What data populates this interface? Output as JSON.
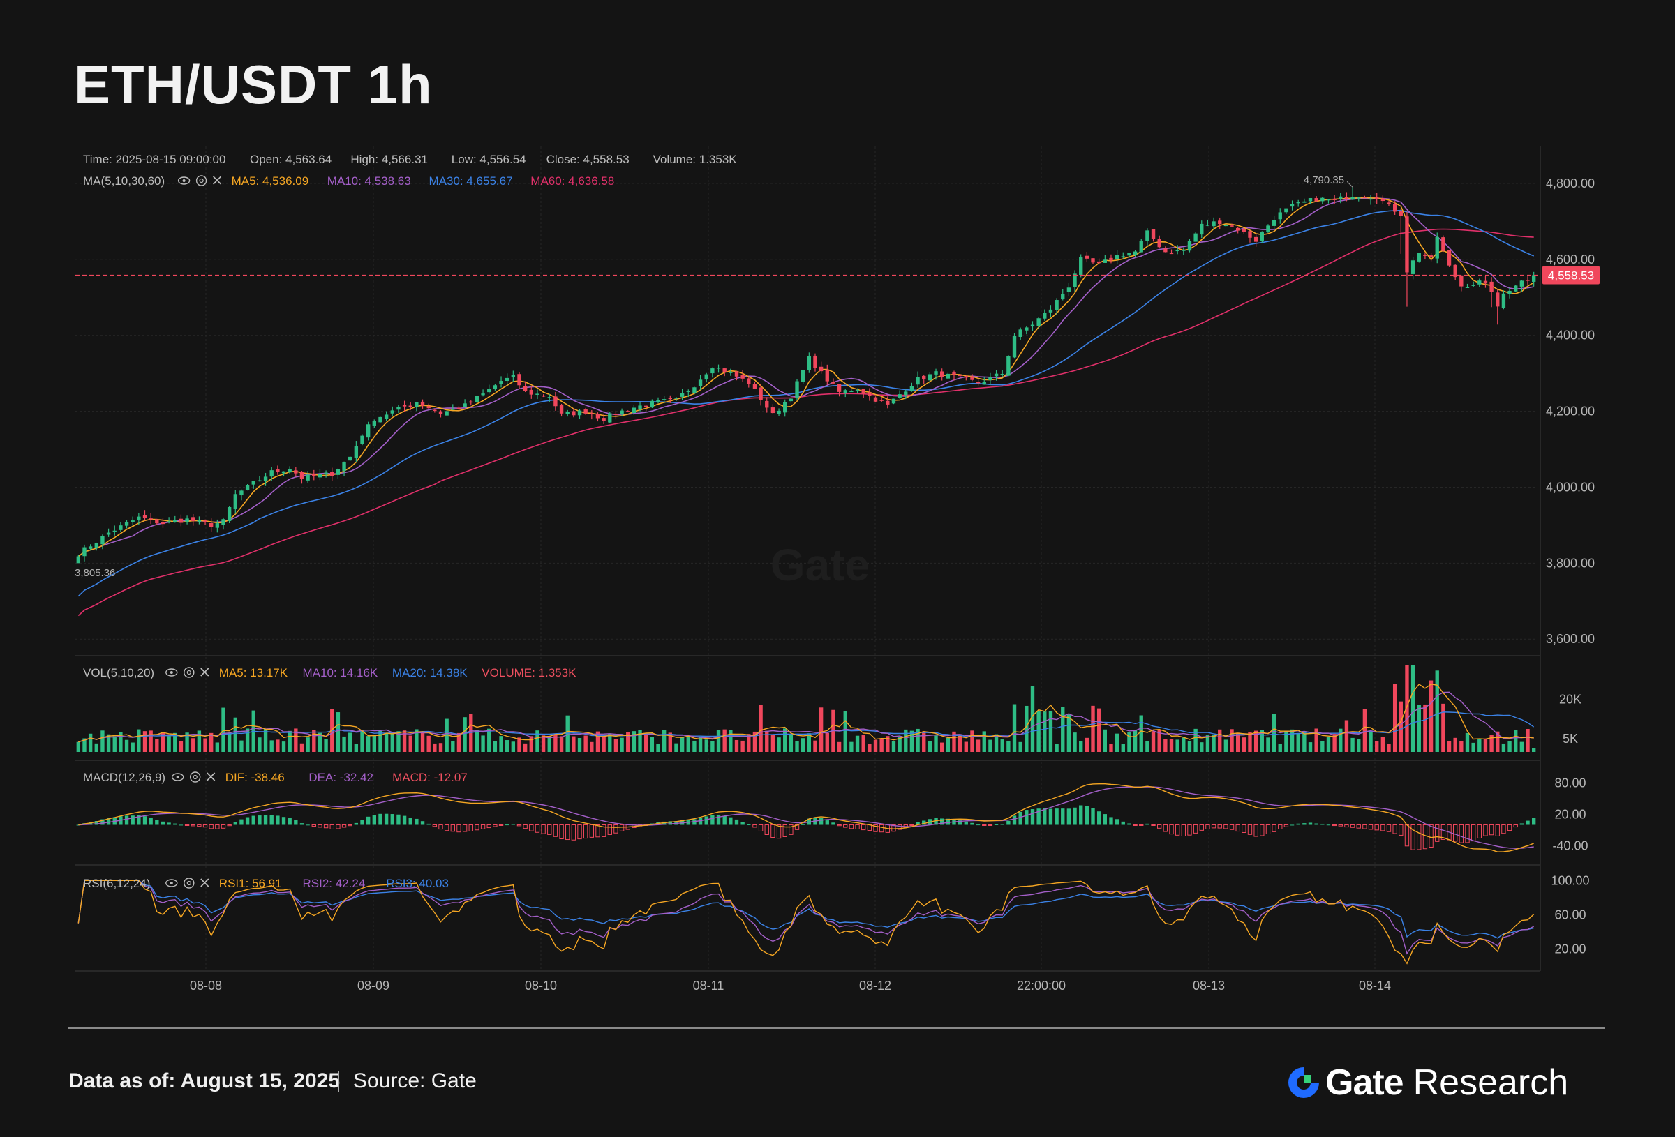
{
  "title": "ETH/USDT 1h",
  "info_bar": {
    "time": "Time: 2025-08-15 09:00:00",
    "open": "Open: 4,563.64",
    "high": "High: 4,566.31",
    "low": "Low: 4,556.54",
    "close": "Close: 4,558.53",
    "volume": "Volume: 1.353K"
  },
  "indicators": {
    "ma": {
      "name": "MA(5,10,30,60)",
      "values": [
        {
          "label": "MA5: 4,536.09",
          "color": "#f5a623"
        },
        {
          "label": "MA10: 4,538.63",
          "color": "#a35fc8"
        },
        {
          "label": "MA30: 4,655.67",
          "color": "#3b82e6"
        },
        {
          "label": "MA60: 4,636.58",
          "color": "#e0306a"
        }
      ]
    },
    "vol": {
      "name": "VOL(5,10,20)",
      "values": [
        {
          "label": "MA5: 13.17K",
          "color": "#f5a623"
        },
        {
          "label": "MA10: 14.16K",
          "color": "#a35fc8"
        },
        {
          "label": "MA20: 14.38K",
          "color": "#3b82e6"
        },
        {
          "label": "VOLUME: 1.353K",
          "color": "#f05060"
        }
      ]
    },
    "macd": {
      "name": "MACD(12,26,9)",
      "values": [
        {
          "label": "DIF: -38.46",
          "color": "#f5a623"
        },
        {
          "label": "DEA: -32.42",
          "color": "#a35fc8"
        },
        {
          "label": "MACD: -12.07",
          "color": "#f05060"
        }
      ]
    },
    "rsi": {
      "name": "RSI(6,12,24)",
      "values": [
        {
          "label": "RSI1: 56.91",
          "color": "#f5a623"
        },
        {
          "label": "RSI2: 42.24",
          "color": "#a35fc8"
        },
        {
          "label": "RSI3: 40.03",
          "color": "#3b82e6"
        }
      ]
    }
  },
  "colors": {
    "up": "#2ebd85",
    "down": "#f0475c",
    "grid": "#262626",
    "axis_text": "#b5b5b5"
  },
  "chart_data": {
    "type": "candlestick",
    "interval": "1h",
    "x_tick_labels": [
      "08-08",
      "08-09",
      "08-10",
      "08-11",
      "08-12",
      "22:00:00",
      "08-13",
      "08-14"
    ],
    "price_axis": {
      "ylim": [
        3560,
        4890
      ],
      "ticks": [
        "4,800.00",
        "4,600.00",
        "4,400.00",
        "4,200.00",
        "4,000.00",
        "3,800.00",
        "3,600.00"
      ]
    },
    "current_price": "4,558.53",
    "high_marker": "4,790.35",
    "low_marker": "3,805.36",
    "volume_axis": {
      "ticks": [
        "20K",
        "5K"
      ]
    },
    "macd_axis": {
      "ticks": [
        "80.00",
        "20.00",
        "-40.00"
      ]
    },
    "rsi_axis": {
      "ticks": [
        "100.00",
        "60.00",
        "20.00"
      ]
    },
    "watermark": "Gate",
    "close_keypoints": [
      {
        "x": 0,
        "y": 3825
      },
      {
        "x": 5,
        "y": 3880
      },
      {
        "x": 10,
        "y": 3920
      },
      {
        "x": 14,
        "y": 3905
      },
      {
        "x": 18,
        "y": 3915
      },
      {
        "x": 22,
        "y": 3900
      },
      {
        "x": 24,
        "y": 3910
      },
      {
        "x": 26,
        "y": 3980
      },
      {
        "x": 29,
        "y": 4010
      },
      {
        "x": 32,
        "y": 4040
      },
      {
        "x": 35,
        "y": 4050
      },
      {
        "x": 37,
        "y": 4025
      },
      {
        "x": 42,
        "y": 4035
      },
      {
        "x": 45,
        "y": 4080
      },
      {
        "x": 47,
        "y": 4140
      },
      {
        "x": 49,
        "y": 4180
      },
      {
        "x": 52,
        "y": 4200
      },
      {
        "x": 56,
        "y": 4225
      },
      {
        "x": 60,
        "y": 4195
      },
      {
        "x": 64,
        "y": 4215
      },
      {
        "x": 67,
        "y": 4245
      },
      {
        "x": 70,
        "y": 4280
      },
      {
        "x": 72,
        "y": 4290
      },
      {
        "x": 74,
        "y": 4250
      },
      {
        "x": 78,
        "y": 4240
      },
      {
        "x": 80,
        "y": 4190
      },
      {
        "x": 84,
        "y": 4200
      },
      {
        "x": 87,
        "y": 4180
      },
      {
        "x": 89,
        "y": 4195
      },
      {
        "x": 92,
        "y": 4210
      },
      {
        "x": 96,
        "y": 4225
      },
      {
        "x": 99,
        "y": 4230
      },
      {
        "x": 102,
        "y": 4270
      },
      {
        "x": 105,
        "y": 4320
      },
      {
        "x": 108,
        "y": 4300
      },
      {
        "x": 111,
        "y": 4275
      },
      {
        "x": 115,
        "y": 4190
      },
      {
        "x": 118,
        "y": 4240
      },
      {
        "x": 121,
        "y": 4340
      },
      {
        "x": 123,
        "y": 4300
      },
      {
        "x": 126,
        "y": 4250
      },
      {
        "x": 129,
        "y": 4260
      },
      {
        "x": 131,
        "y": 4240
      },
      {
        "x": 134,
        "y": 4215
      },
      {
        "x": 136,
        "y": 4245
      },
      {
        "x": 139,
        "y": 4285
      },
      {
        "x": 142,
        "y": 4300
      },
      {
        "x": 145,
        "y": 4290
      },
      {
        "x": 149,
        "y": 4275
      },
      {
        "x": 153,
        "y": 4300
      },
      {
        "x": 155,
        "y": 4400
      },
      {
        "x": 158,
        "y": 4430
      },
      {
        "x": 161,
        "y": 4470
      },
      {
        "x": 164,
        "y": 4530
      },
      {
        "x": 166,
        "y": 4600
      },
      {
        "x": 169,
        "y": 4585
      },
      {
        "x": 172,
        "y": 4610
      },
      {
        "x": 175,
        "y": 4620
      },
      {
        "x": 177,
        "y": 4670
      },
      {
        "x": 180,
        "y": 4620
      },
      {
        "x": 183,
        "y": 4625
      },
      {
        "x": 186,
        "y": 4690
      },
      {
        "x": 189,
        "y": 4700
      },
      {
        "x": 192,
        "y": 4680
      },
      {
        "x": 195,
        "y": 4650
      },
      {
        "x": 198,
        "y": 4710
      },
      {
        "x": 201,
        "y": 4740
      },
      {
        "x": 205,
        "y": 4760
      },
      {
        "x": 208,
        "y": 4755
      },
      {
        "x": 211,
        "y": 4770
      },
      {
        "x": 215,
        "y": 4765
      },
      {
        "x": 217,
        "y": 4740
      },
      {
        "x": 219,
        "y": 4720
      },
      {
        "x": 220,
        "y": 4570
      },
      {
        "x": 222,
        "y": 4620
      },
      {
        "x": 224,
        "y": 4600
      },
      {
        "x": 225,
        "y": 4660
      },
      {
        "x": 227,
        "y": 4580
      },
      {
        "x": 229,
        "y": 4530
      },
      {
        "x": 232,
        "y": 4540
      },
      {
        "x": 234,
        "y": 4520
      },
      {
        "x": 235,
        "y": 4470
      },
      {
        "x": 236,
        "y": 4510
      },
      {
        "x": 238,
        "y": 4535
      },
      {
        "x": 240,
        "y": 4550
      },
      {
        "x": 241,
        "y": 4558.53
      }
    ]
  },
  "footer": {
    "date": "Data as of: August 15, 2025",
    "source": "Source: Gate"
  },
  "brand": {
    "gate": "Gate",
    "research": "Research"
  }
}
